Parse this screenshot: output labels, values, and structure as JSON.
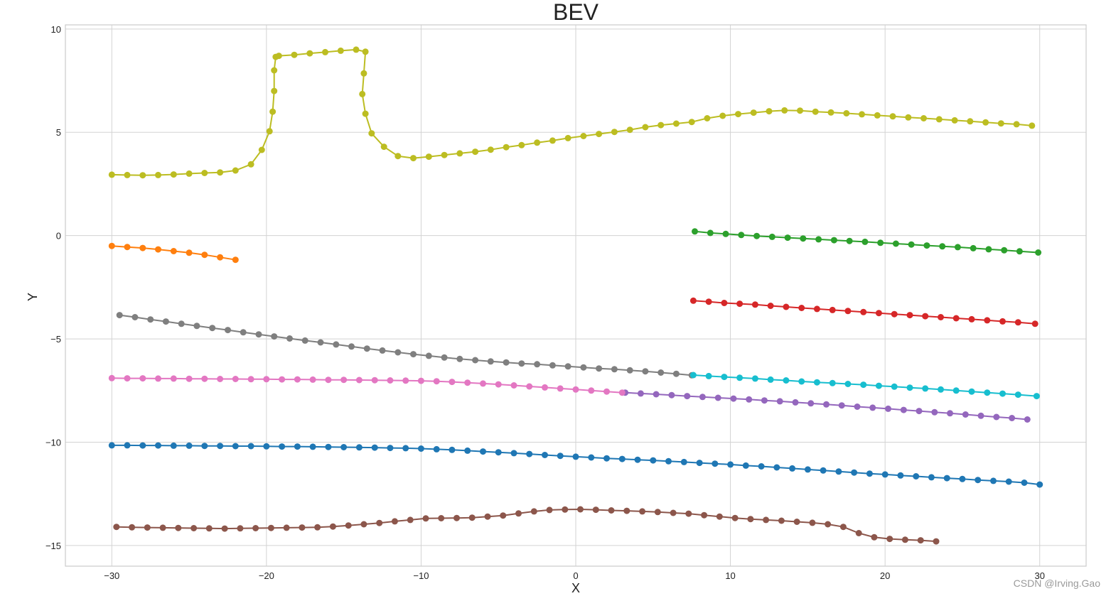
{
  "watermark": "CSDN @Irving.Gao",
  "chart_data": {
    "type": "line",
    "title": "BEV",
    "xlabel": "X",
    "ylabel": "Y",
    "xlim": [
      -33,
      33
    ],
    "ylim": [
      -16,
      10.2
    ],
    "xticks": [
      -30,
      -20,
      -10,
      0,
      10,
      20,
      30
    ],
    "xtick_labels": [
      "−30",
      "−20",
      "−10",
      "0",
      "10",
      "20",
      "30"
    ],
    "yticks": [
      10,
      5,
      0,
      -5,
      -10,
      -15
    ],
    "ytick_labels": [
      "10",
      "5",
      "0",
      "−5",
      "−10",
      "−15"
    ],
    "grid": true,
    "markers": true,
    "series": [
      {
        "color": "#1f77b4",
        "x": [
          -30,
          -29,
          -28,
          -27,
          -26,
          -25,
          -24,
          -23,
          -22,
          -21,
          -20,
          -19,
          -18,
          -17,
          -16,
          -15,
          -14,
          -13,
          -12,
          -11,
          -10,
          -9,
          -8,
          -7,
          -6,
          -5,
          -4,
          -3,
          -2,
          -1,
          0,
          1,
          2,
          3,
          4,
          5,
          6,
          7,
          8,
          9,
          10,
          11,
          12,
          13,
          14,
          15,
          16,
          17,
          18,
          19,
          20,
          21,
          22,
          23,
          24,
          25,
          26,
          27,
          28,
          29,
          30
        ],
        "y": [
          -10.15,
          -10.15,
          -10.16,
          -10.16,
          -10.17,
          -10.17,
          -10.18,
          -10.18,
          -10.19,
          -10.19,
          -10.2,
          -10.21,
          -10.21,
          -10.22,
          -10.23,
          -10.24,
          -10.25,
          -10.26,
          -10.28,
          -10.29,
          -10.31,
          -10.34,
          -10.37,
          -10.41,
          -10.45,
          -10.49,
          -10.53,
          -10.57,
          -10.62,
          -10.66,
          -10.7,
          -10.74,
          -10.78,
          -10.81,
          -10.85,
          -10.88,
          -10.92,
          -10.96,
          -11,
          -11.04,
          -11.08,
          -11.13,
          -11.17,
          -11.22,
          -11.27,
          -11.32,
          -11.37,
          -11.42,
          -11.47,
          -11.52,
          -11.56,
          -11.61,
          -11.65,
          -11.7,
          -11.74,
          -11.78,
          -11.83,
          -11.87,
          -11.91,
          -11.96,
          -12.05
        ]
      },
      {
        "color": "#ff7f0e",
        "x": [
          -30,
          -29,
          -28,
          -27,
          -26,
          -25,
          -24,
          -23,
          -22
        ],
        "y": [
          -0.5,
          -0.55,
          -0.6,
          -0.67,
          -0.75,
          -0.83,
          -0.93,
          -1.05,
          -1.17
        ]
      },
      {
        "color": "#2ca02c",
        "x": [
          7.7,
          8.7,
          9.7,
          10.7,
          11.7,
          12.7,
          13.7,
          14.7,
          15.7,
          16.7,
          17.7,
          18.7,
          19.7,
          20.7,
          21.7,
          22.7,
          23.7,
          24.7,
          25.7,
          26.7,
          27.7,
          28.7,
          29.9
        ],
        "y": [
          0.2,
          0.13,
          0.08,
          0.03,
          -0.02,
          -0.06,
          -0.1,
          -0.14,
          -0.18,
          -0.22,
          -0.26,
          -0.3,
          -0.35,
          -0.39,
          -0.43,
          -0.48,
          -0.52,
          -0.56,
          -0.61,
          -0.66,
          -0.71,
          -0.76,
          -0.82
        ]
      },
      {
        "color": "#d62728",
        "x": [
          7.6,
          8.6,
          9.6,
          10.6,
          11.6,
          12.6,
          13.6,
          14.6,
          15.6,
          16.6,
          17.6,
          18.6,
          19.6,
          20.6,
          21.6,
          22.6,
          23.6,
          24.6,
          25.6,
          26.6,
          27.6,
          28.6,
          29.7
        ],
        "y": [
          -3.15,
          -3.2,
          -3.26,
          -3.3,
          -3.34,
          -3.4,
          -3.45,
          -3.5,
          -3.55,
          -3.6,
          -3.65,
          -3.7,
          -3.75,
          -3.8,
          -3.85,
          -3.9,
          -3.95,
          -4,
          -4.05,
          -4.1,
          -4.15,
          -4.2,
          -4.27
        ]
      },
      {
        "color": "#9467bd",
        "x": [
          3.2,
          4.2,
          5.2,
          6.2,
          7.2,
          8.2,
          9.2,
          10.2,
          11.2,
          12.2,
          13.2,
          14.2,
          15.2,
          16.2,
          17.2,
          18.2,
          19.2,
          20.2,
          21.2,
          22.2,
          23.2,
          24.2,
          25.2,
          26.2,
          27.2,
          28.2,
          29.2
        ],
        "y": [
          -7.6,
          -7.64,
          -7.68,
          -7.72,
          -7.77,
          -7.81,
          -7.85,
          -7.89,
          -7.93,
          -7.98,
          -8.02,
          -8.07,
          -8.12,
          -8.17,
          -8.22,
          -8.28,
          -8.33,
          -8.38,
          -8.44,
          -8.49,
          -8.55,
          -8.6,
          -8.66,
          -8.72,
          -8.78,
          -8.83,
          -8.9
        ]
      },
      {
        "color": "#8c564b",
        "x": [
          -29.7,
          -28.7,
          -27.7,
          -26.7,
          -25.7,
          -24.7,
          -23.7,
          -22.7,
          -21.7,
          -20.7,
          -19.7,
          -18.7,
          -17.7,
          -16.7,
          -15.7,
          -14.7,
          -13.7,
          -12.7,
          -11.7,
          -10.7,
          -9.7,
          -8.7,
          -7.7,
          -6.7,
          -5.7,
          -4.7,
          -3.7,
          -2.7,
          -1.7,
          -0.7,
          0.3,
          1.3,
          2.3,
          3.3,
          4.3,
          5.3,
          6.3,
          7.3,
          8.3,
          9.3,
          10.3,
          11.3,
          12.3,
          13.3,
          14.3,
          15.3,
          16.3,
          17.3,
          18.3,
          19.3,
          20.3,
          21.3,
          22.3,
          23.3
        ],
        "y": [
          -14.1,
          -14.12,
          -14.13,
          -14.14,
          -14.15,
          -14.16,
          -14.17,
          -14.18,
          -14.17,
          -14.16,
          -14.15,
          -14.14,
          -14.13,
          -14.12,
          -14.08,
          -14.03,
          -13.97,
          -13.91,
          -13.83,
          -13.76,
          -13.69,
          -13.68,
          -13.67,
          -13.65,
          -13.6,
          -13.55,
          -13.45,
          -13.35,
          -13.28,
          -13.26,
          -13.25,
          -13.27,
          -13.3,
          -13.32,
          -13.35,
          -13.38,
          -13.42,
          -13.46,
          -13.53,
          -13.6,
          -13.67,
          -13.72,
          -13.76,
          -13.8,
          -13.85,
          -13.9,
          -13.97,
          -14.1,
          -14.4,
          -14.6,
          -14.68,
          -14.72,
          -14.75,
          -14.8
        ]
      },
      {
        "color": "#e377c2",
        "x": [
          -30,
          -29,
          -28,
          -27,
          -26,
          -25,
          -24,
          -23,
          -22,
          -21,
          -20,
          -19,
          -18,
          -17,
          -16,
          -15,
          -14,
          -13,
          -12,
          -11,
          -10,
          -9,
          -8,
          -7,
          -6,
          -5,
          -4,
          -3,
          -2,
          -1,
          0,
          1,
          2,
          3
        ],
        "y": [
          -6.9,
          -6.91,
          -6.91,
          -6.92,
          -6.92,
          -6.93,
          -6.93,
          -6.94,
          -6.94,
          -6.95,
          -6.95,
          -6.96,
          -6.96,
          -6.97,
          -6.98,
          -6.98,
          -6.99,
          -7,
          -7.01,
          -7.02,
          -7.03,
          -7.05,
          -7.08,
          -7.12,
          -7.16,
          -7.2,
          -7.25,
          -7.3,
          -7.35,
          -7.4,
          -7.45,
          -7.5,
          -7.55,
          -7.6
        ]
      },
      {
        "color": "#7f7f7f",
        "x": [
          -29.5,
          -28.5,
          -27.5,
          -26.5,
          -25.5,
          -24.5,
          -23.5,
          -22.5,
          -21.5,
          -20.5,
          -19.5,
          -18.5,
          -17.5,
          -16.5,
          -15.5,
          -14.5,
          -13.5,
          -12.5,
          -11.5,
          -10.5,
          -9.5,
          -8.5,
          -7.5,
          -6.5,
          -5.5,
          -4.5,
          -3.5,
          -2.5,
          -1.5,
          -0.5,
          0.5,
          1.5,
          2.5,
          3.5,
          4.5,
          5.5,
          6.5,
          7.5
        ],
        "y": [
          -3.85,
          -3.95,
          -4.06,
          -4.16,
          -4.27,
          -4.37,
          -4.47,
          -4.57,
          -4.68,
          -4.78,
          -4.88,
          -4.98,
          -5.08,
          -5.17,
          -5.27,
          -5.37,
          -5.47,
          -5.56,
          -5.65,
          -5.74,
          -5.82,
          -5.9,
          -5.97,
          -6.03,
          -6.09,
          -6.14,
          -6.19,
          -6.23,
          -6.28,
          -6.33,
          -6.38,
          -6.43,
          -6.47,
          -6.52,
          -6.57,
          -6.63,
          -6.69,
          -6.76
        ]
      },
      {
        "color": "#bcbd22",
        "x": [
          -30,
          -29,
          -28,
          -27,
          -26,
          -25,
          -24,
          -23,
          -22,
          -21,
          -20.3,
          -19.8,
          -19.6,
          -19.5,
          -19.5,
          -19.4,
          -19.2,
          -18.2,
          -17.2,
          -16.2,
          -15.2,
          -14.2,
          -13.6,
          -13.7,
          -13.8,
          -13.6,
          -13.2,
          -12.4,
          -11.5,
          -10.5,
          -9.5,
          -8.5,
          -7.5,
          -6.5,
          -5.5,
          -4.5,
          -3.5,
          -2.5,
          -1.5,
          -0.5,
          0.5,
          1.5,
          2.5,
          3.5,
          4.5,
          5.5,
          6.5,
          7.5,
          8.5,
          9.5,
          10.5,
          11.5,
          12.5,
          13.5,
          14.5,
          15.5,
          16.5,
          17.5,
          18.5,
          19.5,
          20.5,
          21.5,
          22.5,
          23.5,
          24.5,
          25.5,
          26.5,
          27.5,
          28.5,
          29.5
        ],
        "y": [
          2.95,
          2.93,
          2.92,
          2.93,
          2.96,
          3,
          3.03,
          3.06,
          3.15,
          3.45,
          4.15,
          5.05,
          6.0,
          7.0,
          8.0,
          8.65,
          8.7,
          8.75,
          8.82,
          8.88,
          8.95,
          9.0,
          8.9,
          7.85,
          6.85,
          5.9,
          4.95,
          4.3,
          3.85,
          3.75,
          3.82,
          3.9,
          3.98,
          4.06,
          4.16,
          4.28,
          4.38,
          4.5,
          4.6,
          4.72,
          4.82,
          4.92,
          5.02,
          5.12,
          5.25,
          5.35,
          5.42,
          5.5,
          5.68,
          5.8,
          5.88,
          5.95,
          6.02,
          6.06,
          6.05,
          6.0,
          5.96,
          5.92,
          5.87,
          5.82,
          5.77,
          5.72,
          5.68,
          5.63,
          5.58,
          5.53,
          5.48,
          5.43,
          5.39,
          5.32
        ]
      },
      {
        "color": "#17becf",
        "x": [
          7.6,
          8.6,
          9.6,
          10.6,
          11.6,
          12.6,
          13.6,
          14.6,
          15.6,
          16.6,
          17.6,
          18.6,
          19.6,
          20.6,
          21.6,
          22.6,
          23.6,
          24.6,
          25.6,
          26.6,
          27.6,
          28.6,
          29.8
        ],
        "y": [
          -6.75,
          -6.8,
          -6.84,
          -6.88,
          -6.92,
          -6.97,
          -7.01,
          -7.06,
          -7.1,
          -7.14,
          -7.18,
          -7.22,
          -7.27,
          -7.31,
          -7.36,
          -7.4,
          -7.45,
          -7.5,
          -7.55,
          -7.6,
          -7.65,
          -7.7,
          -7.77
        ]
      }
    ]
  }
}
